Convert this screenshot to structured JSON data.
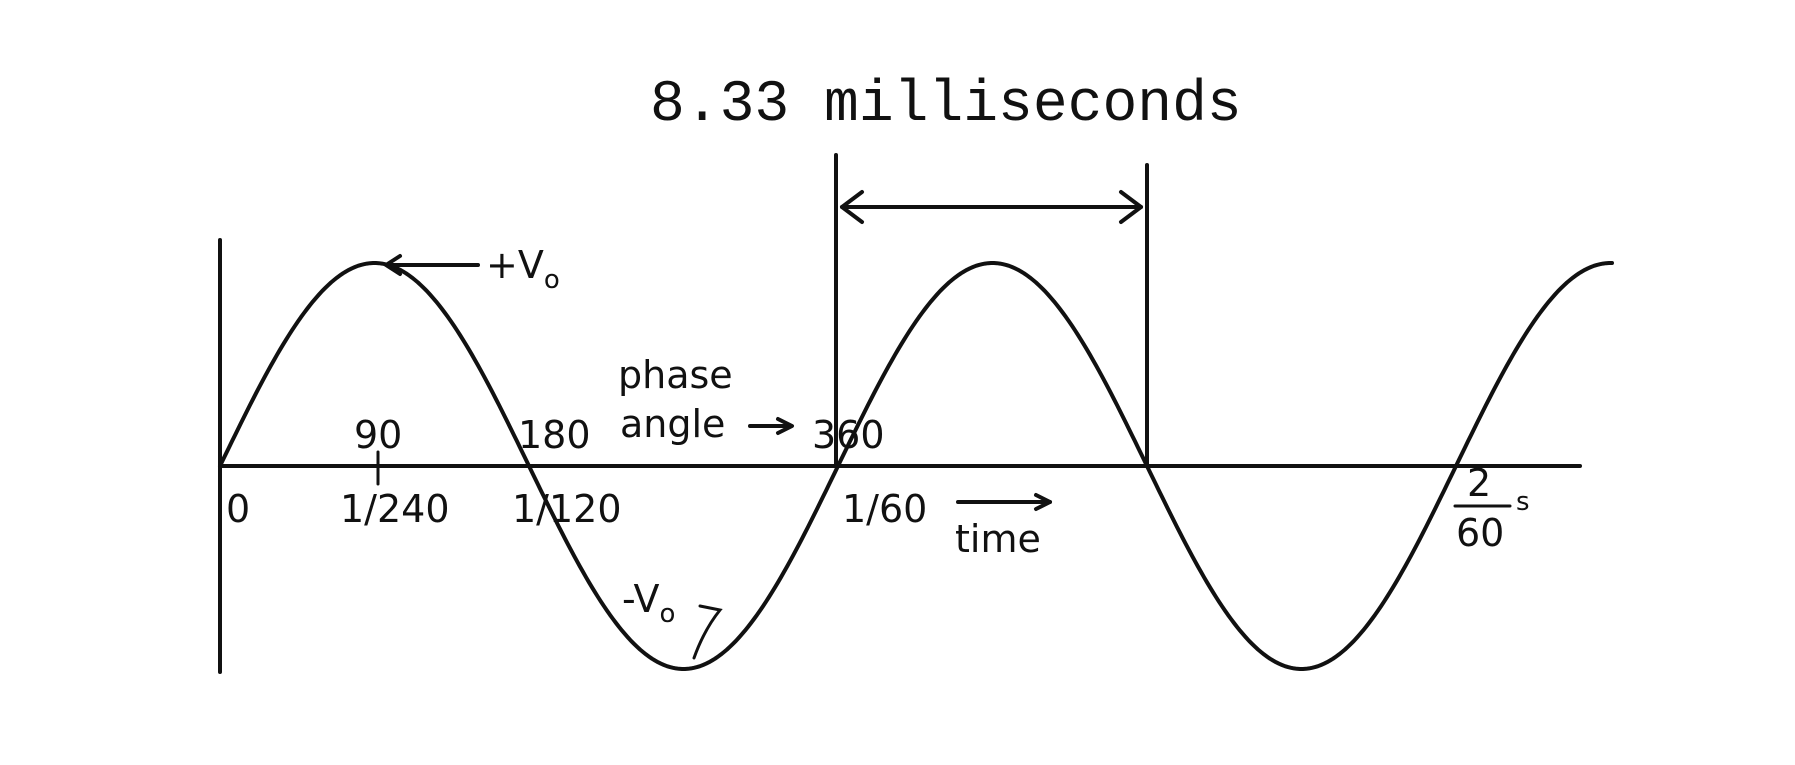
{
  "title": "8.33 milliseconds",
  "labels": {
    "plus_v": "+V",
    "plus_v_sub": "o",
    "minus_v": "-V",
    "minus_v_sub": "o",
    "phase_line1": "phase",
    "phase_line2": "angle",
    "time": "time",
    "seconds": "s"
  },
  "phase_ticks": [
    "90",
    "180",
    "360"
  ],
  "time_ticks": [
    "0",
    "1/240",
    "1/120",
    "1/60"
  ],
  "time_fraction": {
    "numerator": "2",
    "denominator": "60"
  }
}
